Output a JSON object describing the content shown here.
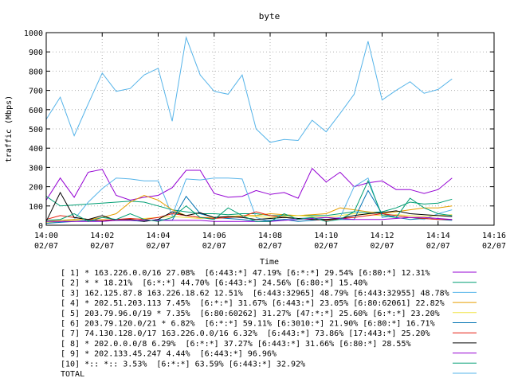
{
  "chart_data": {
    "type": "line",
    "title": "byte",
    "xlabel": "Time",
    "ylabel": "traffic (Mbps)",
    "ylim": [
      0,
      1000
    ],
    "xlim": [
      0,
      16
    ],
    "yticks": [
      "0",
      "100",
      "200",
      "300",
      "400",
      "500",
      "600",
      "700",
      "800",
      "900",
      "1000"
    ],
    "xticks": [
      {
        "t": 0,
        "time": "14:00",
        "date": "02/07"
      },
      {
        "t": 2,
        "time": "14:02",
        "date": "02/07"
      },
      {
        "t": 4,
        "time": "14:04",
        "date": "02/07"
      },
      {
        "t": 6,
        "time": "14:06",
        "date": "02/07"
      },
      {
        "t": 8,
        "time": "14:08",
        "date": "02/07"
      },
      {
        "t": 10,
        "time": "14:10",
        "date": "02/07"
      },
      {
        "t": 12,
        "time": "14:12",
        "date": "02/07"
      },
      {
        "t": 14,
        "time": "14:14",
        "date": "02/07"
      },
      {
        "t": 16,
        "time": "14:16",
        "date": "02/07"
      }
    ],
    "x": [
      0,
      0.5,
      1,
      1.5,
      2,
      2.5,
      3,
      3.5,
      4,
      4.5,
      5,
      5.5,
      6,
      6.5,
      7,
      7.5,
      8,
      8.5,
      9,
      9.5,
      10,
      10.5,
      11,
      11.5,
      12,
      12.5,
      13,
      13.5,
      14,
      14.5
    ],
    "grid": true,
    "legend_placement": "below",
    "series": [
      {
        "name": "[ 1] * 163.226.0.0/16 27.08%  [6:443:*] 47.19% [6:*:*] 29.54% [6:80:*] 12.31%",
        "color": "#9400d3",
        "values": [
          130,
          245,
          145,
          275,
          290,
          155,
          130,
          145,
          155,
          195,
          285,
          285,
          165,
          145,
          150,
          180,
          160,
          170,
          140,
          295,
          225,
          275,
          200,
          220,
          230,
          185,
          185,
          165,
          185,
          245
        ]
      },
      {
        "name": "[ 2] * * 18.21%  [6:*:*] 44.70% [6:443:*] 24.56% [6:80:*] 15.40%",
        "color": "#009e73",
        "values": [
          150,
          100,
          105,
          110,
          115,
          120,
          125,
          120,
          100,
          80,
          70,
          60,
          60,
          55,
          60,
          60,
          50,
          50,
          50,
          50,
          50,
          60,
          70,
          65,
          70,
          90,
          120,
          110,
          115,
          135
        ]
      },
      {
        "name": "[ 3] 162.125.87.8 163.226.18.62 12.51%  [6:443:32965] 48.79% [6:443:32955] 48.78%",
        "color": "#56b4e9",
        "values": [
          10,
          20,
          30,
          120,
          190,
          245,
          240,
          230,
          230,
          50,
          240,
          235,
          245,
          245,
          240,
          40,
          20,
          30,
          35,
          40,
          30,
          40,
          200,
          245,
          40,
          50,
          40,
          30,
          60,
          80
        ]
      },
      {
        "name": "[ 4] * 202.51.203.113 7.45%  [6:*:*] 31.67% [6:443:*] 23.05% [6:80:62061] 22.82%",
        "color": "#e69f00",
        "values": [
          20,
          25,
          30,
          30,
          40,
          60,
          120,
          155,
          130,
          80,
          50,
          40,
          40,
          45,
          50,
          50,
          60,
          55,
          50,
          55,
          60,
          90,
          80,
          70,
          60,
          70,
          80,
          90,
          90,
          100
        ]
      },
      {
        "name": "[ 5] 203.79.96.0/19 * 7.35%  [6:80:60262] 31.27% [47:*:*] 25.60% [6:*:*] 23.20%",
        "color": "#f0e442",
        "values": [
          15,
          20,
          25,
          20,
          30,
          25,
          30,
          35,
          40,
          45,
          40,
          35,
          40,
          45,
          50,
          45,
          40,
          45,
          50,
          45,
          40,
          50,
          60,
          55,
          50,
          55,
          50,
          45,
          50,
          55
        ]
      },
      {
        "name": "[ 6] 203.79.120.0/21 * 6.82%  [6:*:*] 59.11% [6:3010:*] 21.90% [6:80:*] 16.71%",
        "color": "#0072b2",
        "values": [
          10,
          15,
          20,
          25,
          20,
          30,
          25,
          20,
          30,
          25,
          150,
          60,
          40,
          35,
          30,
          20,
          25,
          30,
          20,
          25,
          30,
          30,
          30,
          180,
          60,
          40,
          30,
          35,
          30,
          25
        ]
      },
      {
        "name": "[ 7] 74.130.128.0/17 163.226.0.0/16 6.32%  [6:443:*] 73.86% [17:443:*] 25.20%",
        "color": "#e51e10",
        "values": [
          30,
          50,
          40,
          30,
          25,
          30,
          35,
          30,
          40,
          60,
          50,
          40,
          35,
          40,
          45,
          70,
          50,
          40,
          35,
          30,
          25,
          35,
          40,
          50,
          60,
          50,
          40,
          35,
          30,
          30
        ]
      },
      {
        "name": "[ 8] * 202.0.0.0/8 6.29%  [6:*:*] 37.27% [6:443:*] 31.66% [6:80:*] 28.55%",
        "color": "#000000",
        "values": [
          20,
          170,
          40,
          30,
          50,
          25,
          30,
          20,
          30,
          70,
          50,
          65,
          40,
          45,
          40,
          30,
          35,
          40,
          35,
          30,
          30,
          35,
          50,
          60,
          65,
          75,
          60,
          55,
          50,
          45
        ]
      },
      {
        "name": "[ 9] * 202.133.45.247 4.44%  [6:443:*] 96.96%",
        "color": "#9400d3",
        "values": [
          20,
          20,
          20,
          20,
          20,
          25,
          25,
          25,
          25,
          25,
          25,
          25,
          20,
          20,
          20,
          20,
          20,
          25,
          30,
          35,
          40,
          35,
          30,
          30,
          30,
          35,
          40,
          40,
          35,
          30
        ]
      },
      {
        "name": "[10] *:: *:: 3.53%  [6:*:*] 63.59% [6:443:*] 32.92%",
        "color": "#009e73",
        "values": [
          25,
          30,
          60,
          20,
          40,
          30,
          60,
          30,
          20,
          40,
          100,
          40,
          30,
          90,
          50,
          20,
          20,
          60,
          30,
          40,
          20,
          30,
          70,
          230,
          50,
          40,
          140,
          90,
          60,
          50
        ]
      },
      {
        "name": "TOTAL",
        "color": "#56b4e9",
        "values": [
          550,
          665,
          465,
          630,
          790,
          695,
          710,
          780,
          815,
          540,
          975,
          780,
          695,
          680,
          780,
          500,
          430,
          445,
          440,
          545,
          485,
          580,
          680,
          955,
          650,
          700,
          745,
          685,
          705,
          760
        ]
      }
    ]
  }
}
